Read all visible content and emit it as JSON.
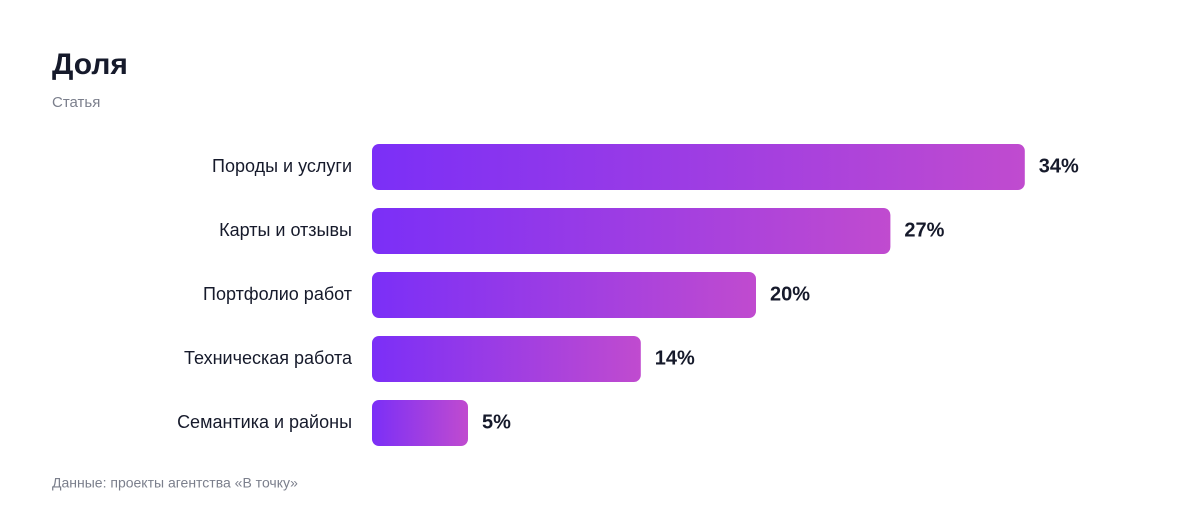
{
  "chart_data": {
    "type": "bar",
    "title": "Доля",
    "subtitle": "Статья",
    "source": "Данные: проекты агентства «В точку»",
    "categories": [
      "Породы и услуги",
      "Карты и отзывы",
      "Портфолио работ",
      "Техническая работа",
      "Семантика и районы"
    ],
    "values": [
      34,
      27,
      20,
      14,
      5
    ],
    "value_labels": [
      "34%",
      "27%",
      "20%",
      "14%",
      "5%"
    ],
    "gradient": [
      "#7b2ff7",
      "#c04bcf"
    ]
  }
}
